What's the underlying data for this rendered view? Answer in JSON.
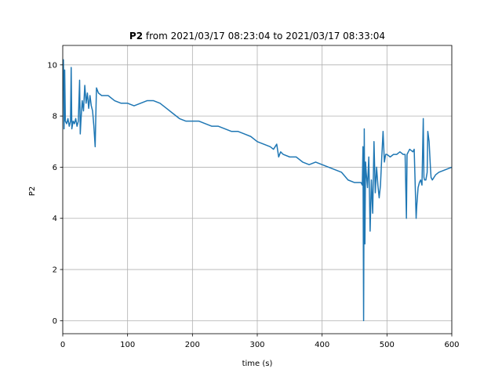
{
  "chart_data": {
    "type": "line",
    "title": "P2",
    "subtitle": "from 2021/03/17 08:23:04 to 2021/03/17 08:33:04",
    "xlabel": "time (s)",
    "ylabel": "P2",
    "xlim": [
      0,
      600
    ],
    "xticks": [
      0,
      100,
      200,
      300,
      400,
      500,
      600
    ],
    "ylim": [
      -0.51,
      10.76
    ],
    "yticks": [
      0,
      2,
      4,
      6,
      8,
      10
    ],
    "grid": true,
    "series": [
      {
        "color": "#1f77b4",
        "x": [
          0,
          1,
          2,
          3,
          4,
          6,
          8,
          10,
          12,
          13,
          14,
          16,
          18,
          20,
          22,
          24,
          26,
          27,
          28,
          30,
          32,
          34,
          36,
          38,
          40,
          42,
          44,
          46,
          48,
          50,
          51,
          52,
          55,
          60,
          70,
          80,
          90,
          100,
          110,
          120,
          130,
          140,
          150,
          160,
          170,
          180,
          190,
          200,
          210,
          220,
          230,
          240,
          250,
          260,
          270,
          280,
          290,
          300,
          310,
          320,
          325,
          330,
          333,
          336,
          340,
          350,
          360,
          370,
          380,
          390,
          400,
          410,
          420,
          430,
          440,
          450,
          455,
          460,
          462,
          463,
          464,
          465,
          466,
          467,
          468,
          470,
          472,
          474,
          476,
          478,
          480,
          482,
          484,
          486,
          488,
          490,
          492,
          494,
          496,
          498,
          500,
          505,
          510,
          515,
          520,
          525,
          528,
          530,
          531,
          533,
          535,
          540,
          542,
          545,
          546,
          548,
          550,
          552,
          554,
          556,
          557,
          558,
          560,
          562,
          563,
          565,
          567,
          568,
          570,
          575,
          580,
          590,
          600
        ],
        "values": [
          9.0,
          10.2,
          7.5,
          9.8,
          7.8,
          7.7,
          7.9,
          7.6,
          7.8,
          9.9,
          7.5,
          7.8,
          7.7,
          7.9,
          7.6,
          7.8,
          9.4,
          7.3,
          7.8,
          8.6,
          8.2,
          9.2,
          8.5,
          8.9,
          8.3,
          8.8,
          8.4,
          8.2,
          7.6,
          6.8,
          8.0,
          9.1,
          8.9,
          8.8,
          8.8,
          8.6,
          8.5,
          8.5,
          8.4,
          8.5,
          8.6,
          8.6,
          8.5,
          8.3,
          8.1,
          7.9,
          7.8,
          7.8,
          7.8,
          7.7,
          7.6,
          7.6,
          7.5,
          7.4,
          7.4,
          7.3,
          7.2,
          7.0,
          6.9,
          6.8,
          6.7,
          6.9,
          6.4,
          6.6,
          6.5,
          6.4,
          6.4,
          6.2,
          6.1,
          6.2,
          6.1,
          6.0,
          5.9,
          5.8,
          5.5,
          5.4,
          5.4,
          5.4,
          5.3,
          6.8,
          0.0,
          7.5,
          3.0,
          6.2,
          5.8,
          5.2,
          6.4,
          3.5,
          5.5,
          4.2,
          7.0,
          5.0,
          6.0,
          5.3,
          4.8,
          5.3,
          6.4,
          7.4,
          6.2,
          6.5,
          6.5,
          6.4,
          6.5,
          6.5,
          6.6,
          6.5,
          6.5,
          4.0,
          6.5,
          6.6,
          6.7,
          6.6,
          6.7,
          4.0,
          4.5,
          5.2,
          5.4,
          5.5,
          5.3,
          7.9,
          5.6,
          5.5,
          5.5,
          5.8,
          7.4,
          7.0,
          6.0,
          5.6,
          5.5,
          5.7,
          5.8,
          5.9,
          6.0
        ]
      }
    ]
  }
}
